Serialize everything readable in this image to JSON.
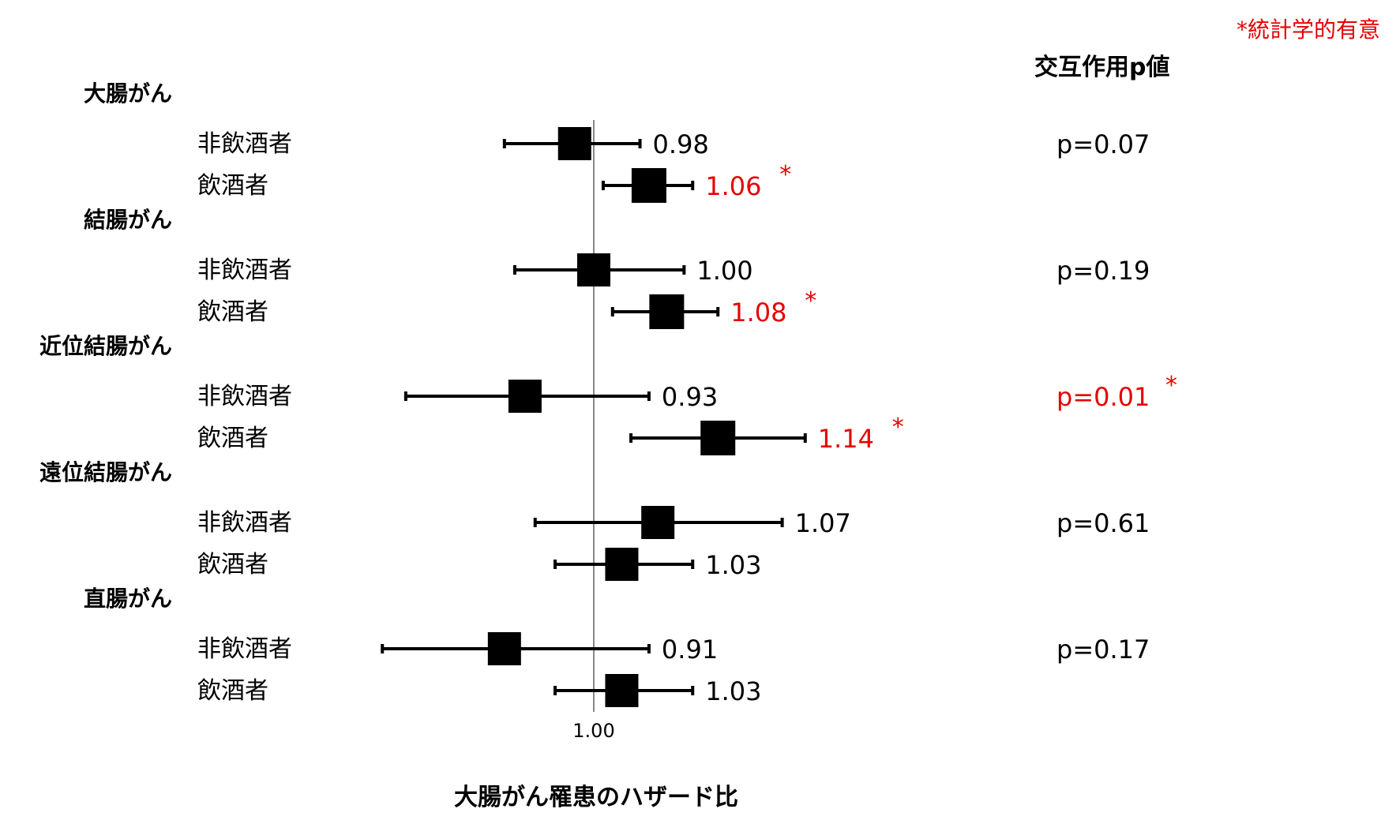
{
  "legend_note": "*統計学的有意",
  "pvalue_header": "交互作用p値",
  "colors": {
    "significant": "#e60000",
    "normal": "#000000",
    "refline": "#888888"
  },
  "chart_data": {
    "type": "forest",
    "xlabel": "大腸がん罹患のハザード比",
    "reference_value": 1.0,
    "reference_label": "1.00",
    "groups": [
      {
        "name": "大腸がん",
        "pvalue": "p=0.07",
        "pvalue_significant": false,
        "rows": [
          {
            "label": "非飲酒者",
            "hr": 0.98,
            "hr_label": "0.98",
            "lo": 0.91,
            "hi": 1.05,
            "significant": false
          },
          {
            "label": "飲酒者",
            "hr": 1.06,
            "hr_label": "1.06",
            "lo": 1.01,
            "hi": 1.11,
            "significant": true
          }
        ]
      },
      {
        "name": "結腸がん",
        "pvalue": "p=0.19",
        "pvalue_significant": false,
        "rows": [
          {
            "label": "非飲酒者",
            "hr": 1.0,
            "hr_label": "1.00",
            "lo": 0.92,
            "hi": 1.1,
            "significant": false
          },
          {
            "label": "飲酒者",
            "hr": 1.08,
            "hr_label": "1.08",
            "lo": 1.02,
            "hi": 1.14,
            "significant": true
          }
        ]
      },
      {
        "name": "近位結腸がん",
        "pvalue": "p=0.01",
        "pvalue_significant": true,
        "rows": [
          {
            "label": "非飲酒者",
            "hr": 0.93,
            "hr_label": "0.93",
            "lo": 0.82,
            "hi": 1.06,
            "significant": false
          },
          {
            "label": "飲酒者",
            "hr": 1.14,
            "hr_label": "1.14",
            "lo": 1.04,
            "hi": 1.25,
            "significant": true
          }
        ]
      },
      {
        "name": "遠位結腸がん",
        "pvalue": "p=0.61",
        "pvalue_significant": false,
        "rows": [
          {
            "label": "非飲酒者",
            "hr": 1.07,
            "hr_label": "1.07",
            "lo": 0.94,
            "hi": 1.22,
            "significant": false
          },
          {
            "label": "飲酒者",
            "hr": 1.03,
            "hr_label": "1.03",
            "lo": 0.96,
            "hi": 1.11,
            "significant": false
          }
        ]
      },
      {
        "name": "直腸がん",
        "pvalue": "p=0.17",
        "pvalue_significant": false,
        "rows": [
          {
            "label": "非飲酒者",
            "hr": 0.91,
            "hr_label": "0.91",
            "lo": 0.8,
            "hi": 1.06,
            "significant": false
          },
          {
            "label": "飲酒者",
            "hr": 1.03,
            "hr_label": "1.03",
            "lo": 0.96,
            "hi": 1.11,
            "significant": false
          }
        ]
      }
    ]
  }
}
